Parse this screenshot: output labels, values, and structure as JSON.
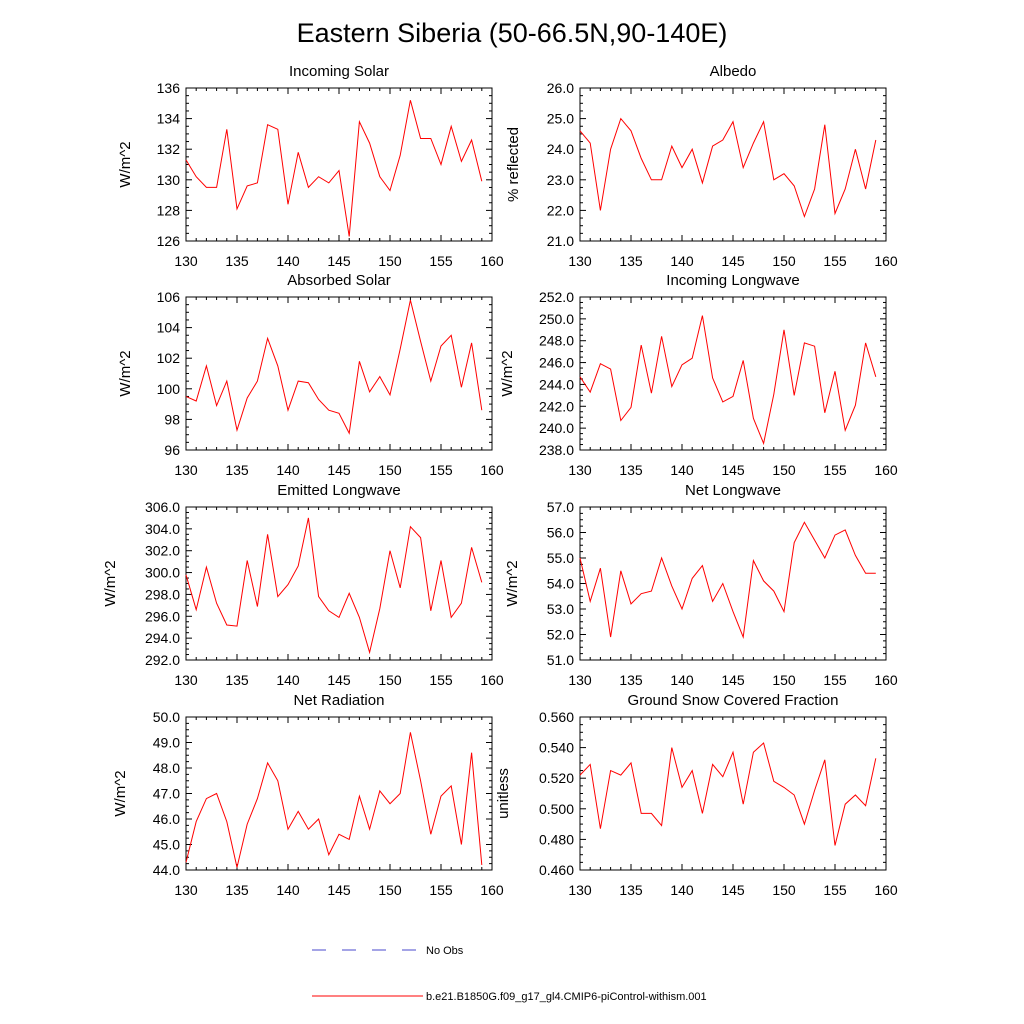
{
  "title": "Eastern Siberia (50-66.5N,90-140E)",
  "legend": {
    "entries": [
      {
        "label": "No Obs",
        "color": "#4a4acc",
        "dashed": true
      },
      {
        "label": "b.e21.B1850G.f09_g17_gl4.CMIP6-piControl-withism.001",
        "color": "#ff0000",
        "dashed": false
      }
    ]
  },
  "chart_data": [
    {
      "type": "line",
      "title": "Incoming Solar",
      "ylabel": "W/m^2",
      "xlim": [
        130,
        160
      ],
      "ylim": [
        126,
        136
      ],
      "xticks": [
        "130",
        "135",
        "140",
        "145",
        "150",
        "155",
        "160"
      ],
      "yticks": [
        "126",
        "128",
        "130",
        "132",
        "134",
        "136"
      ],
      "x": [
        130,
        131,
        132,
        133,
        134,
        135,
        136,
        137,
        138,
        139,
        140,
        141,
        142,
        143,
        144,
        145,
        146,
        147,
        148,
        149,
        150,
        151,
        152,
        153,
        154,
        155,
        156,
        157,
        158,
        159
      ],
      "series": [
        {
          "color": "#ff0000",
          "values": [
            131.3,
            130.2,
            129.5,
            129.5,
            133.3,
            128.1,
            129.6,
            129.8,
            133.6,
            133.3,
            128.4,
            131.8,
            129.5,
            130.2,
            129.8,
            130.6,
            126.3,
            133.8,
            132.4,
            130.2,
            129.3,
            131.6,
            135.2,
            132.7,
            132.7,
            131.0,
            133.5,
            131.2,
            132.6,
            129.9
          ]
        }
      ]
    },
    {
      "type": "line",
      "title": "Albedo",
      "ylabel": "% reflected",
      "xlim": [
        130,
        160
      ],
      "ylim": [
        21.0,
        26.0
      ],
      "xticks": [
        "130",
        "135",
        "140",
        "145",
        "150",
        "155",
        "160"
      ],
      "yticks": [
        "21.0",
        "22.0",
        "23.0",
        "24.0",
        "25.0",
        "26.0"
      ],
      "x": [
        130,
        131,
        132,
        133,
        134,
        135,
        136,
        137,
        138,
        139,
        140,
        141,
        142,
        143,
        144,
        145,
        146,
        147,
        148,
        149,
        150,
        151,
        152,
        153,
        154,
        155,
        156,
        157,
        158,
        159
      ],
      "series": [
        {
          "color": "#ff0000",
          "values": [
            24.6,
            24.2,
            22.0,
            24.0,
            25.0,
            24.6,
            23.7,
            23.0,
            23.0,
            24.1,
            23.4,
            24.0,
            22.9,
            24.1,
            24.3,
            24.9,
            23.4,
            24.2,
            24.9,
            23.0,
            23.2,
            22.8,
            21.8,
            22.7,
            24.8,
            21.9,
            22.7,
            24.0,
            22.7,
            24.3
          ]
        }
      ]
    },
    {
      "type": "line",
      "title": "Absorbed Solar",
      "ylabel": "W/m^2",
      "xlim": [
        130,
        160
      ],
      "ylim": [
        96,
        106
      ],
      "xticks": [
        "130",
        "135",
        "140",
        "145",
        "150",
        "155",
        "160"
      ],
      "yticks": [
        "96",
        "98",
        "100",
        "102",
        "104",
        "106"
      ],
      "x": [
        130,
        131,
        132,
        133,
        134,
        135,
        136,
        137,
        138,
        139,
        140,
        141,
        142,
        143,
        144,
        145,
        146,
        147,
        148,
        149,
        150,
        151,
        152,
        153,
        154,
        155,
        156,
        157,
        158,
        159
      ],
      "series": [
        {
          "color": "#ff0000",
          "values": [
            99.5,
            99.2,
            101.5,
            98.9,
            100.5,
            97.3,
            99.4,
            100.5,
            103.3,
            101.5,
            98.6,
            100.5,
            100.4,
            99.3,
            98.6,
            98.4,
            97.1,
            101.8,
            99.8,
            100.8,
            99.6,
            102.6,
            105.8,
            103.1,
            100.5,
            102.8,
            103.5,
            100.1,
            103.0,
            98.6
          ]
        }
      ]
    },
    {
      "type": "line",
      "title": "Incoming Longwave",
      "ylabel": "W/m^2",
      "xlim": [
        130,
        160
      ],
      "ylim": [
        238.0,
        252.0
      ],
      "xticks": [
        "130",
        "135",
        "140",
        "145",
        "150",
        "155",
        "160"
      ],
      "yticks": [
        "238.0",
        "240.0",
        "242.0",
        "244.0",
        "246.0",
        "248.0",
        "250.0",
        "252.0"
      ],
      "x": [
        130,
        131,
        132,
        133,
        134,
        135,
        136,
        137,
        138,
        139,
        140,
        141,
        142,
        143,
        144,
        145,
        146,
        147,
        148,
        149,
        150,
        151,
        152,
        153,
        154,
        155,
        156,
        157,
        158,
        159
      ],
      "series": [
        {
          "color": "#ff0000",
          "values": [
            244.7,
            243.3,
            245.9,
            245.4,
            240.7,
            241.9,
            247.6,
            243.2,
            248.4,
            243.8,
            245.8,
            246.4,
            250.3,
            244.6,
            242.4,
            242.9,
            246.2,
            240.9,
            238.6,
            243.1,
            249.0,
            243.0,
            247.8,
            247.5,
            241.4,
            245.2,
            239.8,
            242.1,
            247.8,
            244.7
          ]
        }
      ]
    },
    {
      "type": "line",
      "title": "Emitted Longwave",
      "ylabel": "W/m^2",
      "xlim": [
        130,
        160
      ],
      "ylim": [
        292.0,
        306.0
      ],
      "xticks": [
        "130",
        "135",
        "140",
        "145",
        "150",
        "155",
        "160"
      ],
      "yticks": [
        "292.0",
        "294.0",
        "296.0",
        "298.0",
        "300.0",
        "302.0",
        "304.0",
        "306.0"
      ],
      "x": [
        130,
        131,
        132,
        133,
        134,
        135,
        136,
        137,
        138,
        139,
        140,
        141,
        142,
        143,
        144,
        145,
        146,
        147,
        148,
        149,
        150,
        151,
        152,
        153,
        154,
        155,
        156,
        157,
        158,
        159
      ],
      "series": [
        {
          "color": "#ff0000",
          "values": [
            299.8,
            296.6,
            300.5,
            297.2,
            295.2,
            295.1,
            301.1,
            296.9,
            303.5,
            297.8,
            298.9,
            300.6,
            305.0,
            297.8,
            296.5,
            295.9,
            298.1,
            295.9,
            292.7,
            296.7,
            302.0,
            298.6,
            304.2,
            303.2,
            296.5,
            301.1,
            295.9,
            297.2,
            302.3,
            299.1
          ]
        }
      ]
    },
    {
      "type": "line",
      "title": "Net Longwave",
      "ylabel": "W/m^2",
      "xlim": [
        130,
        160
      ],
      "ylim": [
        51.0,
        57.0
      ],
      "xticks": [
        "130",
        "135",
        "140",
        "145",
        "150",
        "155",
        "160"
      ],
      "yticks": [
        "51.0",
        "52.0",
        "53.0",
        "54.0",
        "55.0",
        "56.0",
        "57.0"
      ],
      "x": [
        130,
        131,
        132,
        133,
        134,
        135,
        136,
        137,
        138,
        139,
        140,
        141,
        142,
        143,
        144,
        145,
        146,
        147,
        148,
        149,
        150,
        151,
        152,
        153,
        154,
        155,
        156,
        157,
        158,
        159
      ],
      "series": [
        {
          "color": "#ff0000",
          "values": [
            55.0,
            53.3,
            54.6,
            51.9,
            54.5,
            53.2,
            53.6,
            53.7,
            55.0,
            53.9,
            53.0,
            54.2,
            54.7,
            53.3,
            54.0,
            52.9,
            51.9,
            54.9,
            54.1,
            53.7,
            52.9,
            55.6,
            56.4,
            55.7,
            55.0,
            55.9,
            56.1,
            55.1,
            54.4,
            54.4
          ]
        }
      ]
    },
    {
      "type": "line",
      "title": "Net Radiation",
      "ylabel": "W/m^2",
      "xlim": [
        130,
        160
      ],
      "ylim": [
        44.0,
        50.0
      ],
      "xticks": [
        "130",
        "135",
        "140",
        "145",
        "150",
        "155",
        "160"
      ],
      "yticks": [
        "44.0",
        "45.0",
        "46.0",
        "47.0",
        "48.0",
        "49.0",
        "50.0"
      ],
      "x": [
        130,
        131,
        132,
        133,
        134,
        135,
        136,
        137,
        138,
        139,
        140,
        141,
        142,
        143,
        144,
        145,
        146,
        147,
        148,
        149,
        150,
        151,
        152,
        153,
        154,
        155,
        156,
        157,
        158,
        159
      ],
      "series": [
        {
          "color": "#ff0000",
          "values": [
            44.3,
            45.9,
            46.8,
            47.0,
            45.9,
            44.1,
            45.8,
            46.8,
            48.2,
            47.5,
            45.6,
            46.3,
            45.6,
            46.0,
            44.6,
            45.4,
            45.2,
            46.9,
            45.6,
            47.1,
            46.6,
            47.0,
            49.4,
            47.5,
            45.4,
            46.9,
            47.3,
            45.0,
            48.6,
            44.2
          ]
        }
      ]
    },
    {
      "type": "line",
      "title": "Ground Snow Covered Fraction",
      "ylabel": "unitless",
      "xlim": [
        130,
        160
      ],
      "ylim": [
        0.46,
        0.56
      ],
      "xticks": [
        "130",
        "135",
        "140",
        "145",
        "150",
        "155",
        "160"
      ],
      "yticks": [
        "0.460",
        "0.480",
        "0.500",
        "0.520",
        "0.540",
        "0.560"
      ],
      "x": [
        130,
        131,
        132,
        133,
        134,
        135,
        136,
        137,
        138,
        139,
        140,
        141,
        142,
        143,
        144,
        145,
        146,
        147,
        148,
        149,
        150,
        151,
        152,
        153,
        154,
        155,
        156,
        157,
        158,
        159
      ],
      "series": [
        {
          "color": "#ff0000",
          "values": [
            0.522,
            0.529,
            0.487,
            0.525,
            0.522,
            0.53,
            0.497,
            0.497,
            0.489,
            0.54,
            0.514,
            0.525,
            0.497,
            0.529,
            0.521,
            0.537,
            0.503,
            0.537,
            0.543,
            0.518,
            0.514,
            0.509,
            0.49,
            0.512,
            0.532,
            0.476,
            0.503,
            0.509,
            0.502,
            0.533
          ]
        }
      ]
    }
  ]
}
